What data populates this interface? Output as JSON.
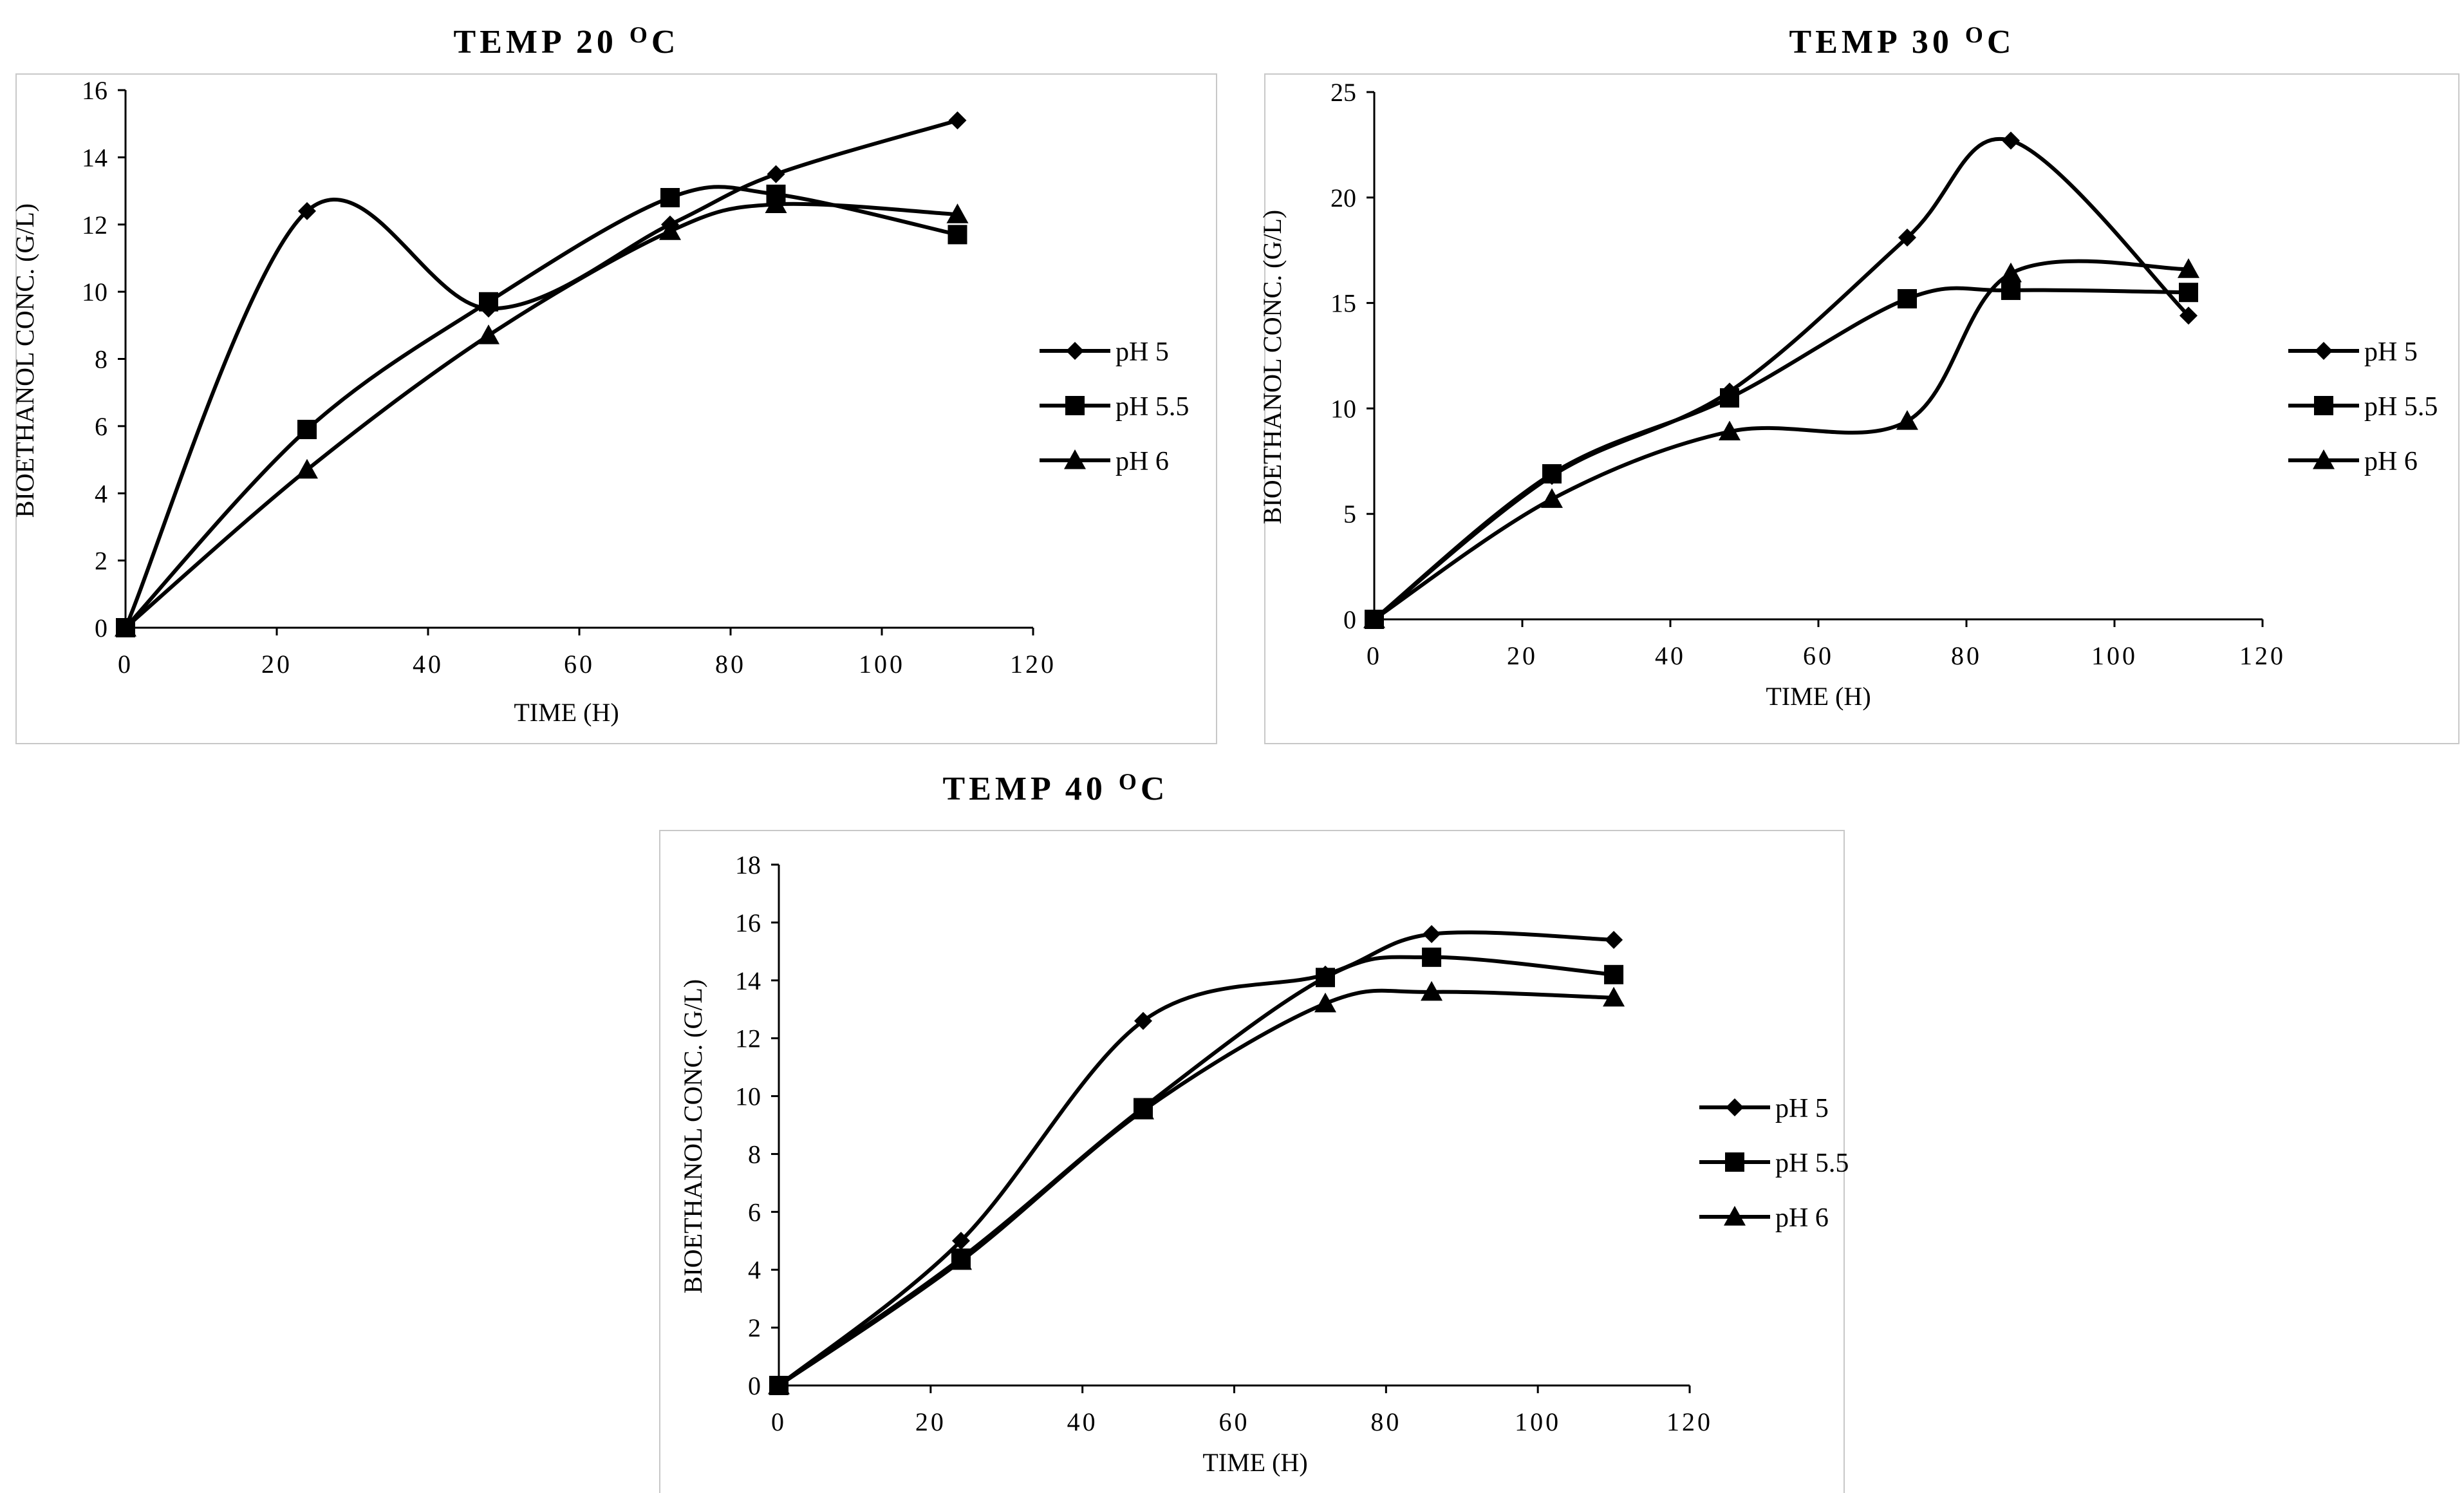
{
  "chart_data": [
    {
      "type": "line",
      "id": "temp20",
      "title": "TEMP 20",
      "title_sup": "O",
      "title_unit": "C",
      "xlabel": "TIME (H)",
      "ylabel": "BIOETHANOL CONC. (G/L)",
      "xlim": [
        0,
        120
      ],
      "ylim": [
        0,
        16
      ],
      "xticks": [
        0,
        20,
        40,
        60,
        80,
        100,
        120
      ],
      "yticks": [
        0,
        2,
        4,
        6,
        8,
        10,
        12,
        14,
        16
      ],
      "x": [
        0,
        24,
        48,
        72,
        86,
        110
      ],
      "legend_position": "right",
      "series": [
        {
          "name": "pH 5",
          "marker": "diamond",
          "values": [
            0,
            12.4,
            9.5,
            12.0,
            13.5,
            15.1
          ]
        },
        {
          "name": "pH 5.5",
          "marker": "square",
          "values": [
            0,
            5.9,
            9.7,
            12.8,
            12.9,
            11.7
          ]
        },
        {
          "name": "pH 6",
          "marker": "triangle",
          "values": [
            0,
            4.7,
            8.7,
            11.8,
            12.6,
            12.3
          ]
        }
      ]
    },
    {
      "type": "line",
      "id": "temp30",
      "title": "TEMP 30",
      "title_sup": "O",
      "title_unit": "C",
      "xlabel": "TIME (H)",
      "ylabel": "BIOETHANOL CONC. (G/L)",
      "xlim": [
        0,
        120
      ],
      "ylim": [
        0,
        25
      ],
      "xticks": [
        0,
        20,
        40,
        60,
        80,
        100,
        120
      ],
      "yticks": [
        0,
        5,
        10,
        15,
        20,
        25
      ],
      "x": [
        0,
        24,
        48,
        72,
        86,
        110
      ],
      "legend_position": "right",
      "series": [
        {
          "name": "pH 5",
          "marker": "diamond",
          "values": [
            0,
            6.8,
            10.8,
            18.1,
            22.7,
            14.4
          ]
        },
        {
          "name": "pH 5.5",
          "marker": "square",
          "values": [
            0,
            6.9,
            10.5,
            15.2,
            15.6,
            15.5
          ]
        },
        {
          "name": "pH 6",
          "marker": "triangle",
          "values": [
            0,
            5.7,
            8.9,
            9.4,
            16.4,
            16.6
          ]
        }
      ]
    },
    {
      "type": "line",
      "id": "temp40",
      "title": "TEMP 40",
      "title_sup": "O",
      "title_unit": "C",
      "xlabel": "TIME (H)",
      "ylabel": "BIOETHANOL CONC. (G/L)",
      "xlim": [
        0,
        120
      ],
      "ylim": [
        0,
        18
      ],
      "xticks": [
        0,
        20,
        40,
        60,
        80,
        100,
        120
      ],
      "yticks": [
        0,
        2,
        4,
        6,
        8,
        10,
        12,
        14,
        16,
        18
      ],
      "x": [
        0,
        24,
        48,
        72,
        86,
        110
      ],
      "legend_position": "right",
      "series": [
        {
          "name": "pH 5",
          "marker": "diamond",
          "values": [
            0,
            5.0,
            12.6,
            14.2,
            15.6,
            15.4
          ]
        },
        {
          "name": "pH 5.5",
          "marker": "square",
          "values": [
            0,
            4.4,
            9.6,
            14.1,
            14.8,
            14.2
          ]
        },
        {
          "name": "pH 6",
          "marker": "triangle",
          "values": [
            0,
            4.3,
            9.5,
            13.2,
            13.6,
            13.4
          ]
        }
      ]
    }
  ]
}
